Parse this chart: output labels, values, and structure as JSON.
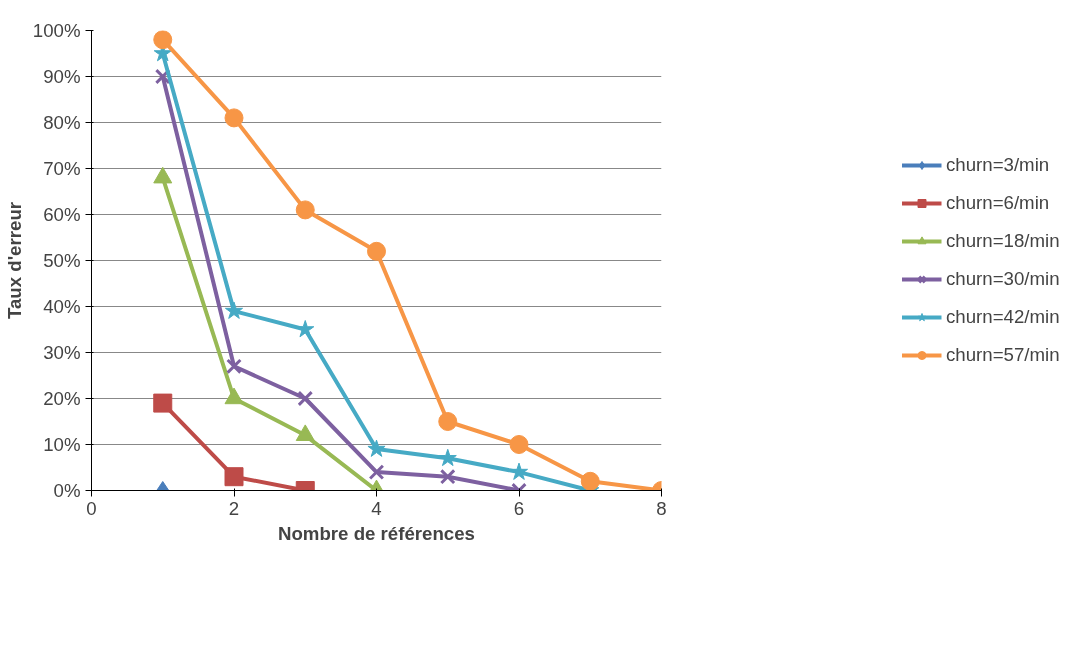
{
  "chart_data": {
    "type": "line",
    "xlabel": "Nombre de références",
    "ylabel": "Taux d'erreur",
    "xlim": [
      0,
      8
    ],
    "xticks": [
      0,
      2,
      4,
      6,
      8
    ],
    "ylim": [
      0,
      100
    ],
    "yticks": [
      {
        "value": 0,
        "label": "0%"
      },
      {
        "value": 10,
        "label": "10%"
      },
      {
        "value": 20,
        "label": "20%"
      },
      {
        "value": 30,
        "label": "30%"
      },
      {
        "value": 40,
        "label": "40%"
      },
      {
        "value": 50,
        "label": "50%"
      },
      {
        "value": 60,
        "label": "60%"
      },
      {
        "value": 70,
        "label": "70%"
      },
      {
        "value": 80,
        "label": "80%"
      },
      {
        "value": 90,
        "label": "90%"
      },
      {
        "value": 100,
        "label": "100%"
      }
    ],
    "grid": "y",
    "legend": "right",
    "line_style": "solid",
    "series": [
      {
        "name": "churn=3/min",
        "color": "#4a7ebb",
        "marker": "diamond",
        "x": [
          1
        ],
        "values": [
          0
        ]
      },
      {
        "name": "churn=6/min",
        "color": "#be4b48",
        "marker": "square",
        "x": [
          1,
          2,
          3
        ],
        "values": [
          19,
          3,
          0
        ]
      },
      {
        "name": "churn=18/min",
        "color": "#98b954",
        "marker": "triangle",
        "x": [
          1,
          2,
          3,
          4
        ],
        "values": [
          68,
          20,
          12,
          0
        ]
      },
      {
        "name": "churn=30/min",
        "color": "#7d60a0",
        "marker": "cross",
        "x": [
          1,
          2,
          3,
          4,
          5,
          6
        ],
        "values": [
          90,
          27,
          20,
          4,
          3,
          0
        ]
      },
      {
        "name": "churn=42/min",
        "color": "#46aac5",
        "marker": "star",
        "x": [
          1,
          2,
          3,
          4,
          5,
          6,
          7
        ],
        "values": [
          95,
          39,
          35,
          9,
          7,
          4,
          0
        ]
      },
      {
        "name": "churn=57/min",
        "color": "#f79646",
        "marker": "circle",
        "x": [
          1,
          2,
          3,
          4,
          5,
          6,
          7,
          8
        ],
        "values": [
          98,
          81,
          61,
          52,
          15,
          10,
          2,
          0
        ]
      }
    ]
  }
}
